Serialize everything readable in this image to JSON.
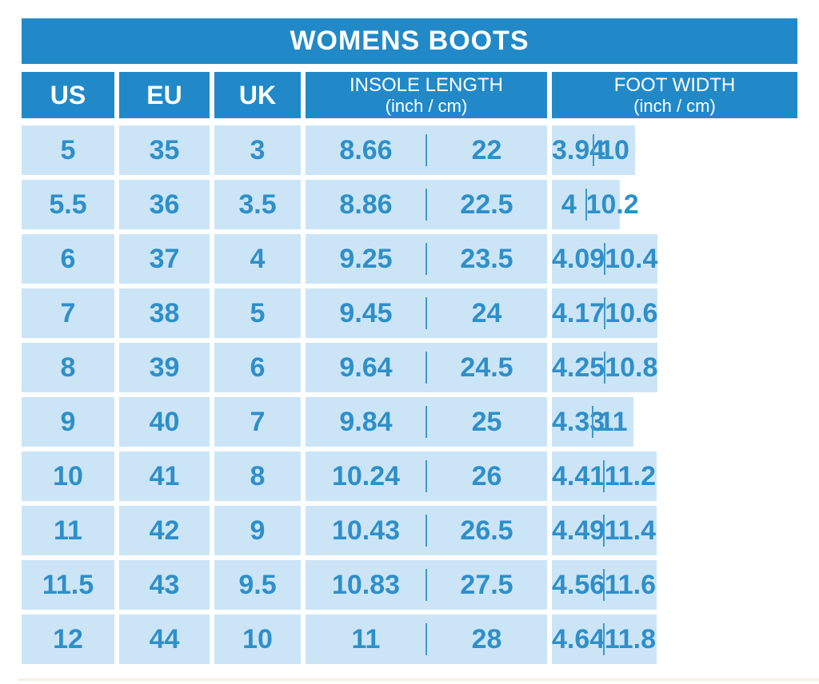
{
  "title": "WOMENS BOOTS",
  "table": {
    "columns": [
      {
        "id": "us",
        "label": "US"
      },
      {
        "id": "eu",
        "label": "EU"
      },
      {
        "id": "uk",
        "label": "UK"
      },
      {
        "id": "insole",
        "label": "INSOLE LENGTH",
        "sublabel": "(inch / cm)"
      },
      {
        "id": "foot",
        "label": "FOOT WIDTH",
        "sublabel": "(inch / cm)"
      }
    ],
    "rows": [
      {
        "us": "5",
        "eu": "35",
        "uk": "3",
        "insole_in": "8.66",
        "insole_cm": "22",
        "foot_in": "3.94",
        "foot_cm": "10"
      },
      {
        "us": "5.5",
        "eu": "36",
        "uk": "3.5",
        "insole_in": "8.86",
        "insole_cm": "22.5",
        "foot_in": "4",
        "foot_cm": "10.2"
      },
      {
        "us": "6",
        "eu": "37",
        "uk": "4",
        "insole_in": "9.25",
        "insole_cm": "23.5",
        "foot_in": "4.09",
        "foot_cm": "10.4"
      },
      {
        "us": "7",
        "eu": "38",
        "uk": "5",
        "insole_in": "9.45",
        "insole_cm": "24",
        "foot_in": "4.17",
        "foot_cm": "10.6"
      },
      {
        "us": "8",
        "eu": "39",
        "uk": "6",
        "insole_in": "9.64",
        "insole_cm": "24.5",
        "foot_in": "4.25",
        "foot_cm": "10.8"
      },
      {
        "us": "9",
        "eu": "40",
        "uk": "7",
        "insole_in": "9.84",
        "insole_cm": "25",
        "foot_in": "4.33",
        "foot_cm": "11"
      },
      {
        "us": "10",
        "eu": "41",
        "uk": "8",
        "insole_in": "10.24",
        "insole_cm": "26",
        "foot_in": "4.41",
        "foot_cm": "11.2"
      },
      {
        "us": "11",
        "eu": "42",
        "uk": "9",
        "insole_in": "10.43",
        "insole_cm": "26.5",
        "foot_in": "4.49",
        "foot_cm": "11.4"
      },
      {
        "us": "11.5",
        "eu": "43",
        "uk": "9.5",
        "insole_in": "10.83",
        "insole_cm": "27.5",
        "foot_in": "4.56",
        "foot_cm": "11.6"
      },
      {
        "us": "12",
        "eu": "44",
        "uk": "10",
        "insole_in": "11",
        "insole_cm": "28",
        "foot_in": "4.64",
        "foot_cm": "11.8"
      }
    ]
  },
  "chart_data": {
    "type": "table",
    "title": "WOMENS BOOTS",
    "columns": [
      "US",
      "EU",
      "UK",
      "INSOLE LENGTH (inch)",
      "INSOLE LENGTH (cm)",
      "FOOT WIDTH (inch)",
      "FOOT WIDTH (cm)"
    ],
    "rows": [
      [
        5,
        35,
        3,
        8.66,
        22,
        3.94,
        10
      ],
      [
        5.5,
        36,
        3.5,
        8.86,
        22.5,
        4,
        10.2
      ],
      [
        6,
        37,
        4,
        9.25,
        23.5,
        4.09,
        10.4
      ],
      [
        7,
        38,
        5,
        9.45,
        24,
        4.17,
        10.6
      ],
      [
        8,
        39,
        6,
        9.64,
        24.5,
        4.25,
        10.8
      ],
      [
        9,
        40,
        7,
        9.84,
        25,
        4.33,
        11
      ],
      [
        10,
        41,
        8,
        10.24,
        26,
        4.41,
        11.2
      ],
      [
        11,
        42,
        9,
        10.43,
        26.5,
        4.49,
        11.4
      ],
      [
        11.5,
        43,
        9.5,
        10.83,
        27.5,
        4.56,
        11.6
      ],
      [
        12,
        44,
        10,
        11,
        28,
        4.64,
        11.8
      ]
    ]
  },
  "colors": {
    "header_blue": "#2289C8",
    "cell_blue": "#CBE5F7",
    "value_text_blue": "#2E8FC9",
    "divider_blue": "#4099CB",
    "background": "#FFFFFF",
    "bottom_line": "#F7EFE2"
  }
}
